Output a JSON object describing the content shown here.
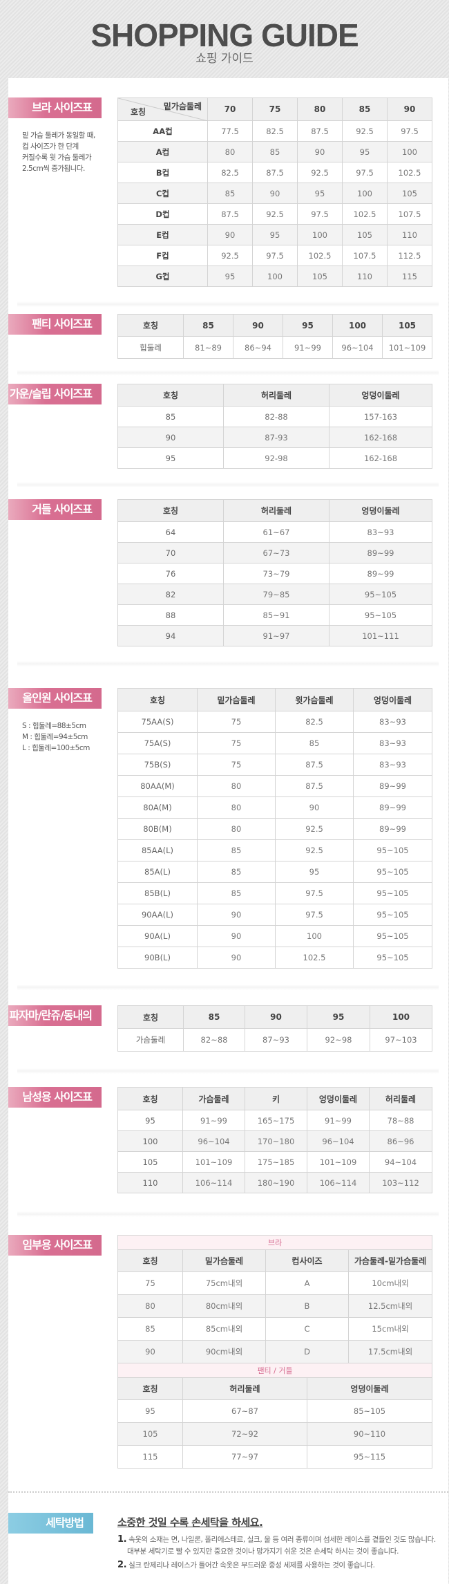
{
  "header": {
    "title": "SHOPPING GUIDE",
    "subtitle": "쇼핑 가이드"
  },
  "colors": {
    "label_pink": "#d96f92",
    "label_blue": "#6ab8d4",
    "caption_pink": "#d66b90"
  },
  "bra": {
    "label": "브라 사이즈표",
    "note": [
      "밑 가슴 둘레가 동일할 때,",
      "컵 사이즈가 한 단계",
      "커질수록 윗 가슴 둘레가",
      "2.5cm씩 증가됩니다."
    ],
    "corner_top": "밑가슴둘레",
    "corner_bottom": "호칭",
    "headers": [
      "70",
      "75",
      "80",
      "85",
      "90"
    ],
    "rows": [
      [
        "AA컵",
        "77.5",
        "82.5",
        "87.5",
        "92.5",
        "97.5"
      ],
      [
        "A컵",
        "80",
        "85",
        "90",
        "95",
        "100"
      ],
      [
        "B컵",
        "82.5",
        "87.5",
        "92.5",
        "97.5",
        "102.5"
      ],
      [
        "C컵",
        "85",
        "90",
        "95",
        "100",
        "105"
      ],
      [
        "D컵",
        "87.5",
        "92.5",
        "97.5",
        "102.5",
        "107.5"
      ],
      [
        "E컵",
        "90",
        "95",
        "100",
        "105",
        "110"
      ],
      [
        "F컵",
        "92.5",
        "97.5",
        "102.5",
        "107.5",
        "112.5"
      ],
      [
        "G컵",
        "95",
        "100",
        "105",
        "110",
        "115"
      ]
    ]
  },
  "panty": {
    "label": "팬티 사이즈표",
    "headers": [
      "호칭",
      "85",
      "90",
      "95",
      "100",
      "105"
    ],
    "rows": [
      [
        "힙둘레",
        "81~89",
        "86~94",
        "91~99",
        "96~104",
        "101~109"
      ]
    ]
  },
  "gown": {
    "label": "가운/슬립 사이즈표",
    "headers": [
      "호칭",
      "허리둘레",
      "엉덩이둘레"
    ],
    "rows": [
      [
        "85",
        "82-88",
        "157-163"
      ],
      [
        "90",
        "87-93",
        "162-168"
      ],
      [
        "95",
        "92-98",
        "162-168"
      ]
    ]
  },
  "girdle": {
    "label": "거들 사이즈표",
    "headers": [
      "호칭",
      "허리둘레",
      "엉덩이둘레"
    ],
    "rows": [
      [
        "64",
        "61~67",
        "83~93"
      ],
      [
        "70",
        "67~73",
        "89~99"
      ],
      [
        "76",
        "73~79",
        "89~99"
      ],
      [
        "82",
        "79~85",
        "95~105"
      ],
      [
        "88",
        "85~91",
        "95~105"
      ],
      [
        "94",
        "91~97",
        "101~111"
      ]
    ]
  },
  "allinone": {
    "label": "올인원 사이즈표",
    "note": [
      "S : 힙둘레=88±5cm",
      "M : 힙둘레=94±5cm",
      "L : 힙둘레=100±5cm"
    ],
    "headers": [
      "호칭",
      "밑가슴둘레",
      "윗가슴둘레",
      "엉덩이둘레"
    ],
    "rows": [
      [
        "75AA(S)",
        "75",
        "82.5",
        "83~93"
      ],
      [
        "75A(S)",
        "75",
        "85",
        "83~93"
      ],
      [
        "75B(S)",
        "75",
        "87.5",
        "83~93"
      ],
      [
        "80AA(M)",
        "80",
        "87.5",
        "89~99"
      ],
      [
        "80A(M)",
        "80",
        "90",
        "89~99"
      ],
      [
        "80B(M)",
        "80",
        "92.5",
        "89~99"
      ],
      [
        "85AA(L)",
        "85",
        "92.5",
        "95~105"
      ],
      [
        "85A(L)",
        "85",
        "95",
        "95~105"
      ],
      [
        "85B(L)",
        "85",
        "97.5",
        "95~105"
      ],
      [
        "90AA(L)",
        "90",
        "97.5",
        "95~105"
      ],
      [
        "90A(L)",
        "90",
        "100",
        "95~105"
      ],
      [
        "90B(L)",
        "90",
        "102.5",
        "95~105"
      ]
    ]
  },
  "pajama": {
    "label": "파자마/란쥬/동내의",
    "headers": [
      "호칭",
      "85",
      "90",
      "95",
      "100"
    ],
    "rows": [
      [
        "가슴둘레",
        "82~88",
        "87~93",
        "92~98",
        "97~103"
      ]
    ]
  },
  "men": {
    "label": "남성용 사이즈표",
    "headers": [
      "호칭",
      "가슴둘레",
      "키",
      "엉덩이둘레",
      "허리둘레"
    ],
    "rows": [
      [
        "95",
        "91~99",
        "165~175",
        "91~99",
        "78~88"
      ],
      [
        "100",
        "96~104",
        "170~180",
        "96~104",
        "86~96"
      ],
      [
        "105",
        "101~109",
        "175~185",
        "101~109",
        "94~104"
      ],
      [
        "110",
        "106~114",
        "180~190",
        "106~114",
        "103~112"
      ]
    ]
  },
  "maternity": {
    "label": "임부용 사이즈표",
    "bra_caption": "브라",
    "bra_headers": [
      "호칭",
      "밑가슴둘레",
      "컵사이즈",
      "가슴둘레-밑가슴둘레"
    ],
    "bra_rows": [
      [
        "75",
        "75cm내외",
        "A",
        "10cm내외"
      ],
      [
        "80",
        "80cm내외",
        "B",
        "12.5cm내외"
      ],
      [
        "85",
        "85cm내외",
        "C",
        "15cm내외"
      ],
      [
        "90",
        "90cm내외",
        "D",
        "17.5cm내외"
      ]
    ],
    "panty_caption": "팬티 / 거들",
    "panty_headers": [
      "호칭",
      "허리둘레",
      "엉덩이둘레"
    ],
    "panty_rows": [
      [
        "95",
        "67~87",
        "85~105"
      ],
      [
        "105",
        "72~92",
        "90~110"
      ],
      [
        "115",
        "77~97",
        "95~115"
      ]
    ]
  },
  "washing": {
    "label": "세탁방법",
    "heading": "소중한 것일 수록 손세탁을 하세요.",
    "items": [
      {
        "num": "1.",
        "lines": [
          "속옷의 소재는 면, 나일론, 폴리에스테르, 실크, 울 등 여러 종류이며 섬세한 레이스를 곁들인 것도 많습니다.",
          "대부분 세탁기로 빨 수 있지만 중요한 것이나 망가지기 쉬운 것은 손세탁 하시는 것이 좋습니다."
        ]
      },
      {
        "num": "2.",
        "lines": [
          "실크 란제리나 레이스가 들어간 속옷은 부드러운 중성 세제를 사용하는 것이 좋습니다."
        ]
      }
    ]
  }
}
